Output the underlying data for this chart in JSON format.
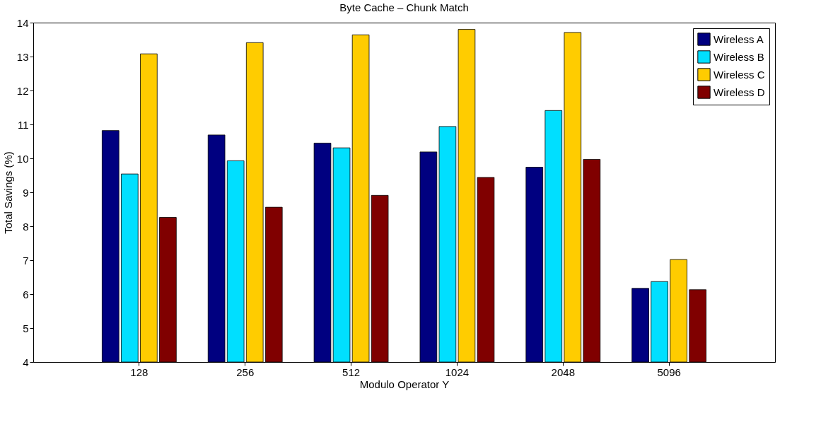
{
  "chart_data": {
    "type": "bar",
    "title": "Byte Cache – Chunk Match",
    "xlabel": "Modulo Operator Y",
    "ylabel": "Total Savings (%)",
    "categories": [
      "128",
      "256",
      "512",
      "1024",
      "2048",
      "5096"
    ],
    "series": [
      {
        "name": "Wireless A",
        "color": "#000080",
        "values": [
          10.82,
          10.69,
          10.45,
          10.19,
          9.74,
          6.17
        ]
      },
      {
        "name": "Wireless B",
        "color": "#00dfff",
        "values": [
          9.54,
          9.93,
          10.31,
          10.94,
          11.41,
          6.37
        ]
      },
      {
        "name": "Wireless C",
        "color": "#ffcc00",
        "values": [
          13.08,
          13.41,
          13.64,
          13.8,
          13.71,
          7.02
        ]
      },
      {
        "name": "Wireless D",
        "color": "#800000",
        "values": [
          8.26,
          8.56,
          8.91,
          9.44,
          9.97,
          6.13
        ]
      }
    ],
    "ylim": [
      4,
      14
    ],
    "yticks": [
      4,
      5,
      6,
      7,
      8,
      9,
      10,
      11,
      12,
      13,
      14
    ],
    "grid": false,
    "legend": "top right"
  }
}
